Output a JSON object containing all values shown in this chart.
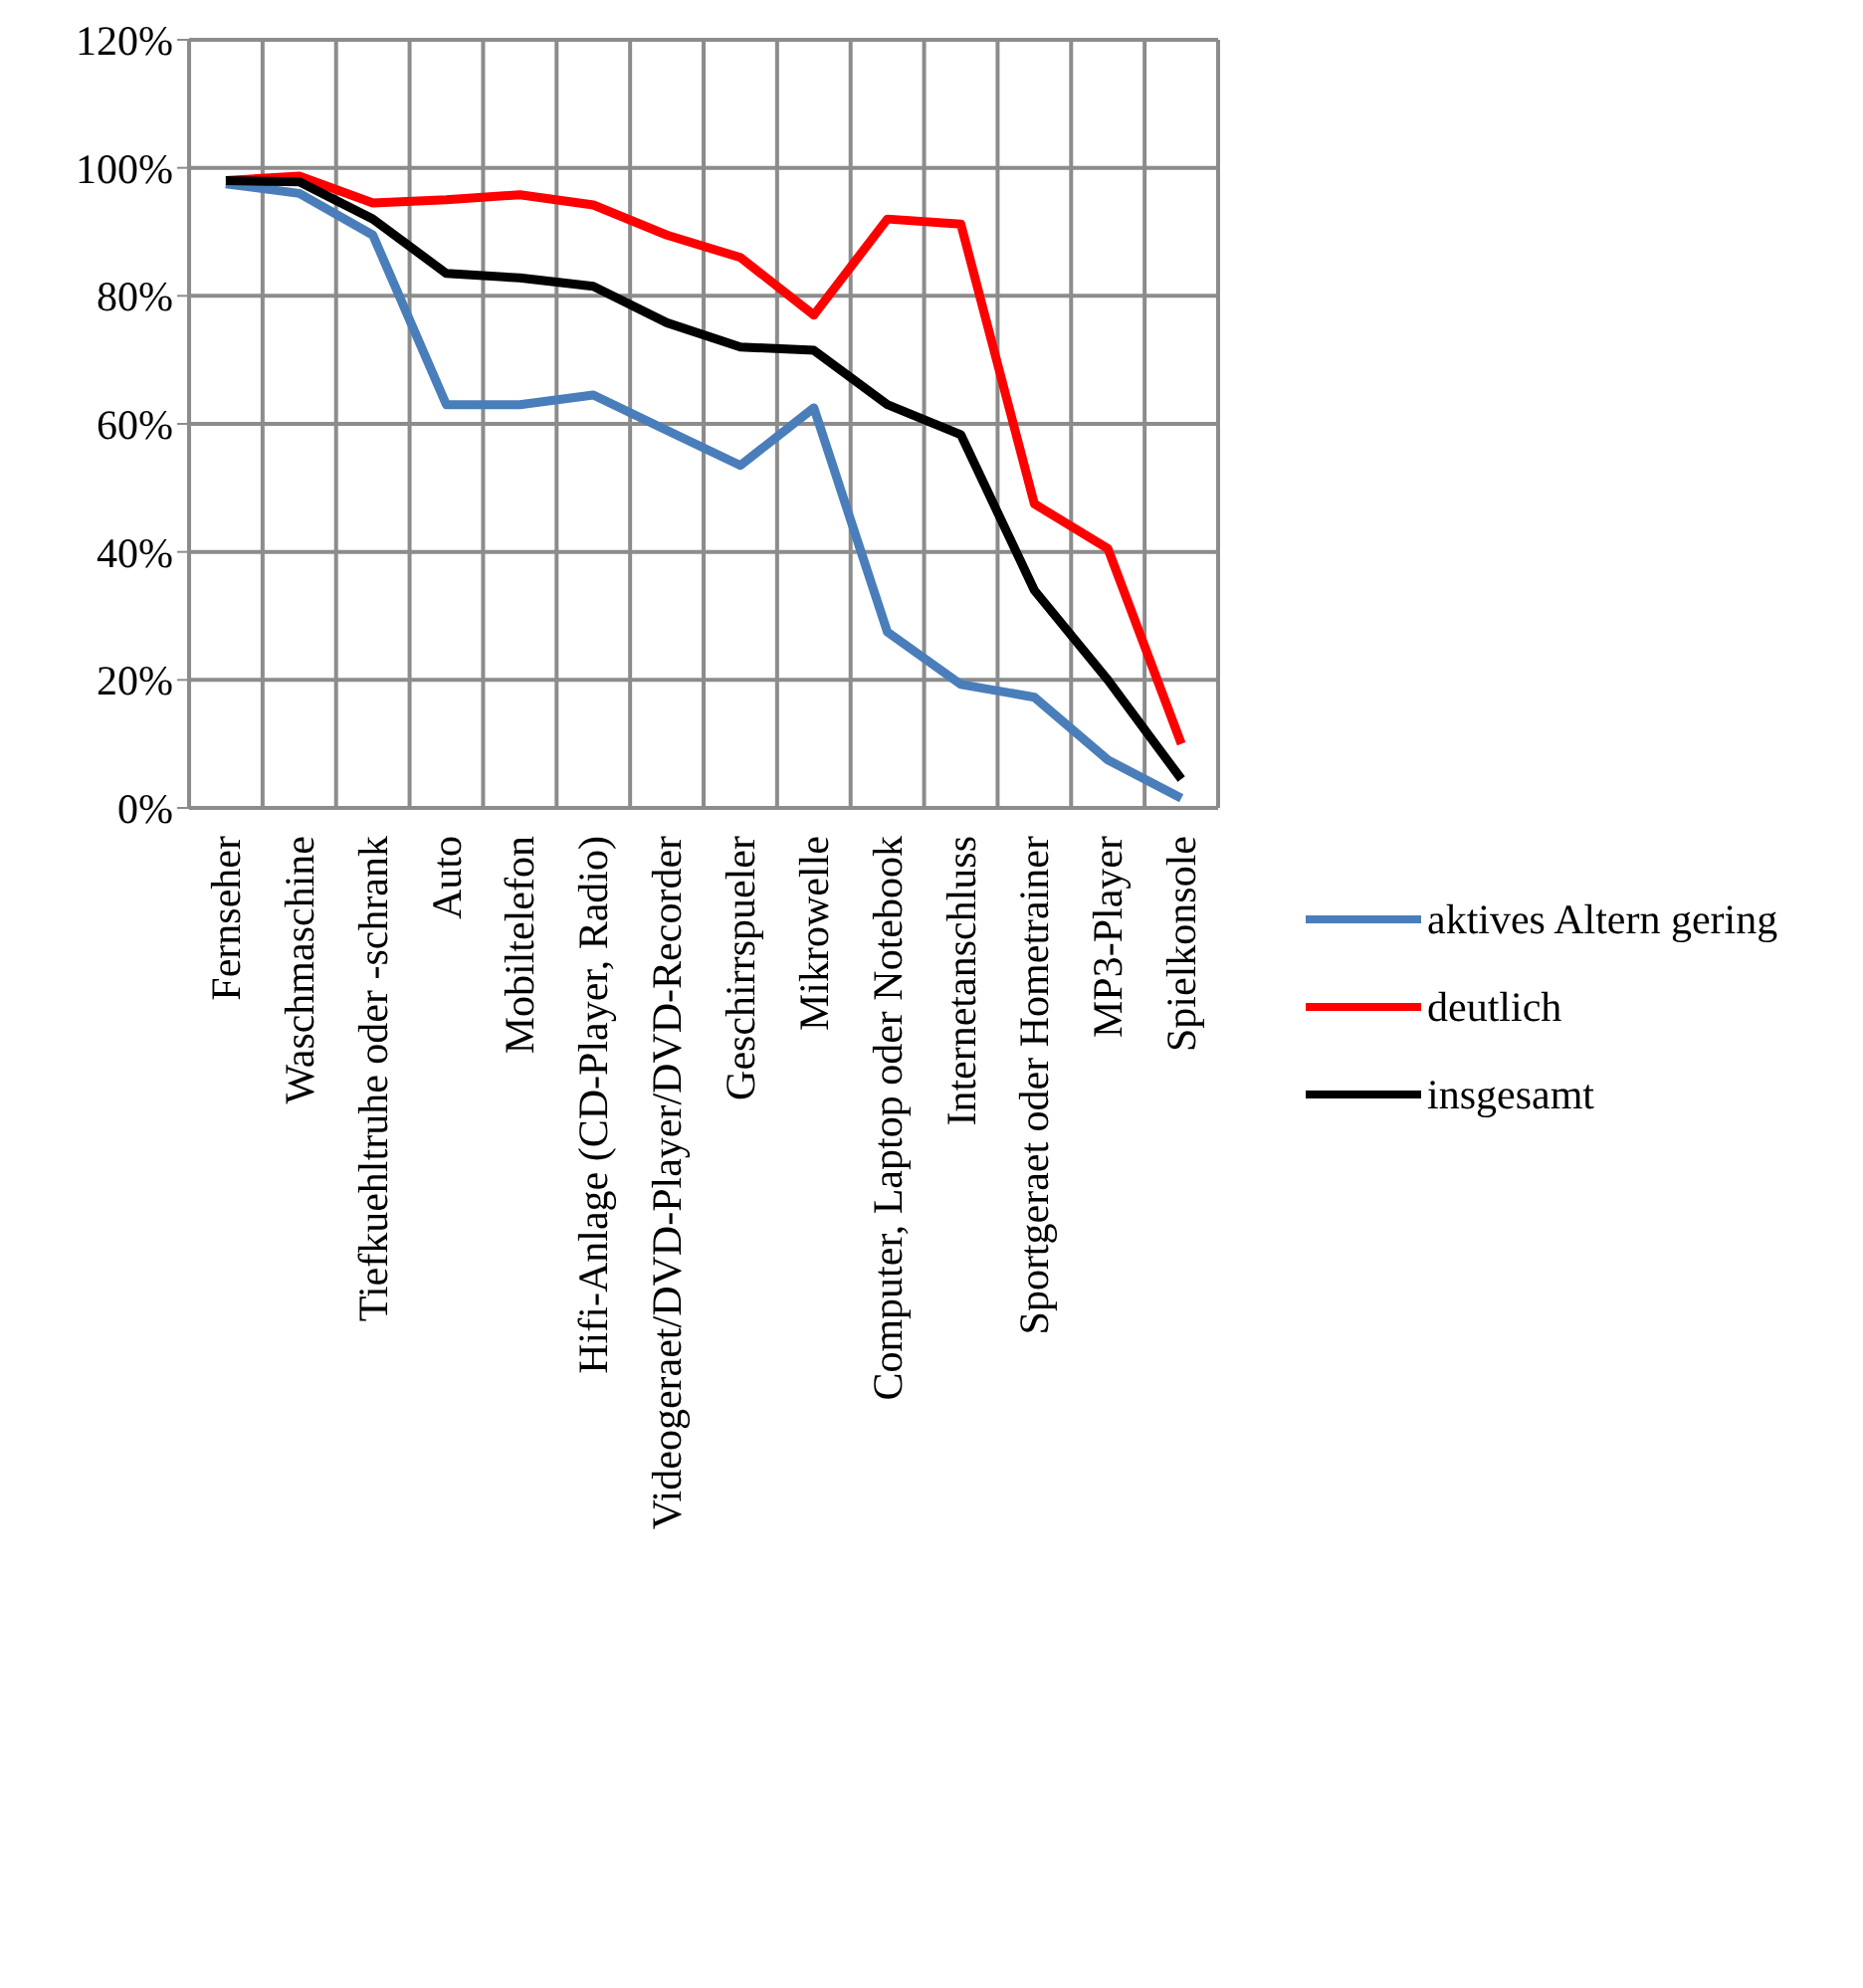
{
  "chart_data": {
    "type": "line",
    "categories": [
      "Fernseher",
      "Waschmaschine",
      "Tiefkuehltruhe oder -schrank",
      "Auto",
      "Mobiltelefon",
      "Hifi-Anlage (CD-Player, Radio)",
      "Videogeraet/DVD-Player/DVD-Recorder",
      "Geschirrspueler",
      "Mikrowelle",
      "Computer, Laptop oder Notebook",
      "Internetanschluss",
      "Sportgeraet oder Hometrainer",
      "MP3-Player",
      "Spielkonsole"
    ],
    "series": [
      {
        "name": "aktives Altern gering",
        "color": "#4a7ebb",
        "values": [
          97.5,
          96,
          89.5,
          63,
          63,
          64.5,
          59,
          53.5,
          62.5,
          27.5,
          19.3,
          17.3,
          7.5,
          1.5
        ]
      },
      {
        "name": "deutlich",
        "color": "#ff0000",
        "values": [
          98,
          98.7,
          94.5,
          95,
          95.8,
          94.2,
          89.5,
          86,
          77,
          92,
          91.2,
          47.5,
          40.5,
          10
        ]
      },
      {
        "name": "insgesamt",
        "color": "#000000",
        "values": [
          98,
          97.8,
          92,
          83.5,
          82.8,
          81.5,
          75.8,
          72,
          71.5,
          63,
          58.3,
          34,
          20,
          4.5
        ]
      }
    ],
    "ylim": [
      0,
      120
    ],
    "yticks": [
      {
        "value": 0,
        "label": "0%"
      },
      {
        "value": 20,
        "label": "20%"
      },
      {
        "value": 40,
        "label": "40%"
      },
      {
        "value": 60,
        "label": "60%"
      },
      {
        "value": 80,
        "label": "80%"
      },
      {
        "value": 100,
        "label": "100%"
      },
      {
        "value": 120,
        "label": "120%"
      }
    ],
    "grid": true,
    "legend": "right",
    "marker": "none",
    "line_style": "solid"
  }
}
